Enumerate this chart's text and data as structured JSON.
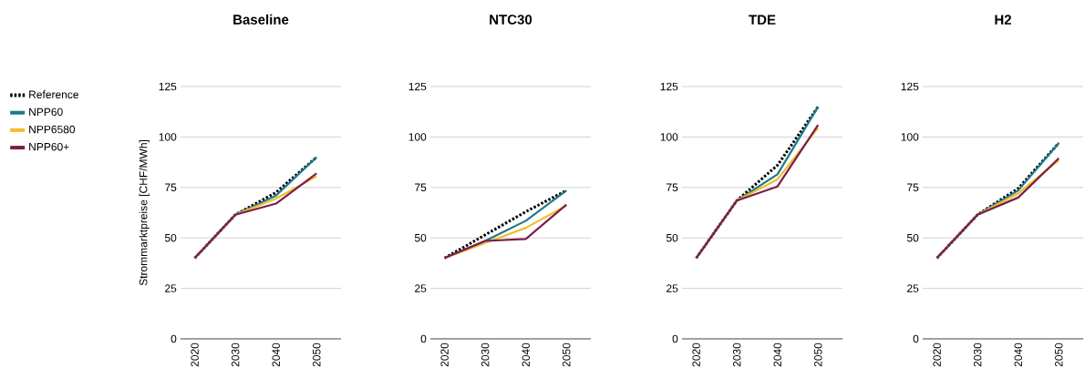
{
  "chart_data": [
    {
      "type": "line",
      "title": "Baseline",
      "ylabel": "Strommarktpreise [CHF/MWh]",
      "categories": [
        "2020",
        "2030",
        "2040",
        "2050"
      ],
      "ylim": [
        0,
        125
      ],
      "yticks": [
        0,
        25,
        50,
        75,
        100,
        125
      ],
      "grid": "y",
      "legend": "left",
      "series": [
        {
          "name": "Reference",
          "color": "#000000",
          "line_style": "dotted",
          "values": [
            40,
            61.5,
            72.5,
            90
          ]
        },
        {
          "name": "NPP60",
          "color": "#1f7a8c",
          "line_style": "solid",
          "values": [
            40,
            61.5,
            71,
            90
          ]
        },
        {
          "name": "NPP6580",
          "color": "#f2bd29",
          "line_style": "solid",
          "values": [
            40,
            61.5,
            69.5,
            80.5
          ]
        },
        {
          "name": "NPP60+",
          "color": "#7a1e48",
          "line_style": "solid",
          "values": [
            40,
            61.5,
            67,
            82
          ]
        }
      ]
    },
    {
      "type": "line",
      "title": "NTC30",
      "categories": [
        "2020",
        "2030",
        "2040",
        "2050"
      ],
      "ylim": [
        0,
        125
      ],
      "yticks": [
        0,
        25,
        50,
        75,
        100,
        125
      ],
      "grid": "y",
      "legend": false,
      "series": [
        {
          "color": "#000000",
          "line_style": "dotted",
          "values": [
            40,
            51.5,
            63,
            73.5
          ]
        },
        {
          "color": "#1f7a8c",
          "line_style": "solid",
          "values": [
            40,
            48.5,
            58.5,
            73.5
          ]
        },
        {
          "color": "#f2bd29",
          "line_style": "solid",
          "values": [
            40,
            47.5,
            55,
            66
          ]
        },
        {
          "color": "#7a1e48",
          "line_style": "solid",
          "values": [
            40,
            48.5,
            49.5,
            66.5
          ]
        }
      ]
    },
    {
      "type": "line",
      "title": "TDE",
      "categories": [
        "2020",
        "2030",
        "2040",
        "2050"
      ],
      "ylim": [
        0,
        125
      ],
      "yticks": [
        0,
        25,
        50,
        75,
        100,
        125
      ],
      "grid": "y",
      "legend": false,
      "series": [
        {
          "color": "#000000",
          "line_style": "dotted",
          "values": [
            40,
            68.5,
            86,
            115
          ]
        },
        {
          "color": "#1f7a8c",
          "line_style": "solid",
          "values": [
            40,
            68.5,
            81.5,
            115
          ]
        },
        {
          "color": "#f2bd29",
          "line_style": "solid",
          "values": [
            40,
            68.5,
            79,
            104.5
          ]
        },
        {
          "color": "#7a1e48",
          "line_style": "solid",
          "values": [
            40,
            68.5,
            75.5,
            106
          ]
        }
      ]
    },
    {
      "type": "line",
      "title": "H2",
      "categories": [
        "2020",
        "2030",
        "2040",
        "2050"
      ],
      "ylim": [
        0,
        125
      ],
      "yticks": [
        0,
        25,
        50,
        75,
        100,
        125
      ],
      "grid": "y",
      "legend": false,
      "series": [
        {
          "color": "#000000",
          "line_style": "dotted",
          "values": [
            40,
            61.5,
            74.5,
            97
          ]
        },
        {
          "color": "#1f7a8c",
          "line_style": "solid",
          "values": [
            40,
            61.5,
            73.5,
            97
          ]
        },
        {
          "color": "#f2bd29",
          "line_style": "solid",
          "values": [
            40,
            61.5,
            72,
            88.5
          ]
        },
        {
          "color": "#7a1e48",
          "line_style": "solid",
          "values": [
            40,
            61.5,
            70,
            89.5
          ]
        }
      ]
    }
  ]
}
